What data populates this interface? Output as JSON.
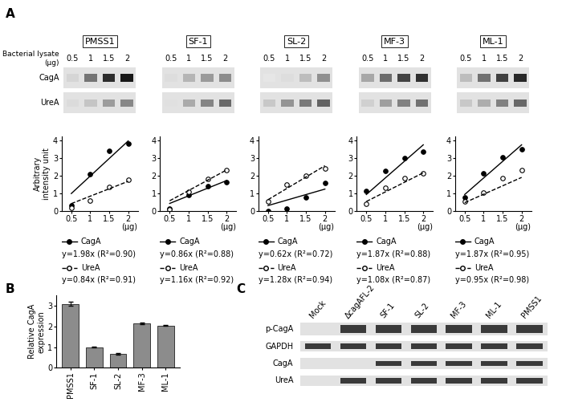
{
  "panel_labels": [
    "A",
    "B",
    "C"
  ],
  "panel_a": {
    "blot_header": "Bacterial lysate (μg)",
    "blot_rows": [
      "CagA",
      "UreA"
    ]
  },
  "chart_data": [
    {
      "type": "line",
      "title": "PMSS1",
      "x": [
        0.5,
        1,
        1.5,
        2
      ],
      "xlim": [
        0.25,
        2.25
      ],
      "xticks": [
        0.5,
        1,
        1.5,
        2
      ],
      "ylim": [
        0,
        4.2
      ],
      "yticks": [
        0,
        1,
        2,
        3,
        4
      ],
      "xlabel": "(μg)",
      "ylabel": "Arbitrary intensity unit",
      "series": [
        {
          "name": "CagA",
          "color": "#000000",
          "marker": "filled_circle",
          "line_style": "solid",
          "values": [
            0.3,
            2.1,
            3.4,
            3.8
          ],
          "fit_slope": 1.98,
          "fit_label": "y=1.98x (R²=0.90)"
        },
        {
          "name": "UreA",
          "color": "#000000",
          "marker": "open_circle",
          "line_style": "dashed",
          "values": [
            0.2,
            0.6,
            1.35,
            1.75
          ],
          "fit_slope": 0.84,
          "fit_label": "y=0.84x (R²=0.91)"
        }
      ]
    },
    {
      "type": "line",
      "title": "SF-1",
      "x": [
        0.5,
        1,
        1.5,
        2
      ],
      "xlim": [
        0.25,
        2.25
      ],
      "xticks": [
        0.5,
        1,
        1.5,
        2
      ],
      "ylim": [
        0,
        4.2
      ],
      "yticks": [
        0,
        1,
        2,
        3,
        4
      ],
      "xlabel": "(μg)",
      "series": [
        {
          "name": "CagA",
          "color": "#000000",
          "marker": "filled_circle",
          "line_style": "solid",
          "values": [
            0.15,
            0.9,
            1.4,
            1.65
          ],
          "fit_slope": 0.86,
          "fit_label": "y=0.86x (R²=0.88)"
        },
        {
          "name": "UreA",
          "color": "#000000",
          "marker": "open_circle",
          "line_style": "dashed",
          "values": [
            0.1,
            1.1,
            1.8,
            2.3
          ],
          "fit_slope": 1.16,
          "fit_label": "y=1.16x (R²=0.92)"
        }
      ]
    },
    {
      "type": "line",
      "title": "SL-2",
      "x": [
        0.5,
        1,
        1.5,
        2
      ],
      "xlim": [
        0.25,
        2.25
      ],
      "xticks": [
        0.5,
        1,
        1.5,
        2
      ],
      "ylim": [
        0,
        4.2
      ],
      "yticks": [
        0,
        1,
        2,
        3,
        4
      ],
      "xlabel": "(μg)",
      "series": [
        {
          "name": "CagA",
          "color": "#000000",
          "marker": "filled_circle",
          "line_style": "solid",
          "values": [
            0.0,
            0.15,
            0.75,
            1.6
          ],
          "fit_slope": 0.62,
          "fit_label": "y=0.62x (R²=0.72)"
        },
        {
          "name": "UreA",
          "color": "#000000",
          "marker": "open_circle",
          "line_style": "dashed",
          "values": [
            0.55,
            1.5,
            2.0,
            2.4
          ],
          "fit_slope": 1.28,
          "fit_label": "y=1.28x (R²=0.94)"
        }
      ]
    },
    {
      "type": "line",
      "title": "MF-3",
      "x": [
        0.5,
        1,
        1.5,
        2
      ],
      "xlim": [
        0.25,
        2.25
      ],
      "xticks": [
        0.5,
        1,
        1.5,
        2
      ],
      "ylim": [
        0,
        4.2
      ],
      "yticks": [
        0,
        1,
        2,
        3,
        4
      ],
      "xlabel": "(μg)",
      "series": [
        {
          "name": "CagA",
          "color": "#000000",
          "marker": "filled_circle",
          "line_style": "solid",
          "values": [
            1.15,
            2.25,
            3.0,
            3.35
          ],
          "fit_slope": 1.87,
          "fit_label": "y=1.87x (R²=0.88)"
        },
        {
          "name": "UreA",
          "color": "#000000",
          "marker": "open_circle",
          "line_style": "dashed",
          "values": [
            0.4,
            1.3,
            1.85,
            2.15
          ],
          "fit_slope": 1.08,
          "fit_label": "y=1.08x (R²=0.87)"
        }
      ]
    },
    {
      "type": "line",
      "title": "ML-1",
      "x": [
        0.5,
        1,
        1.5,
        2
      ],
      "xlim": [
        0.25,
        2.25
      ],
      "xticks": [
        0.5,
        1,
        1.5,
        2
      ],
      "ylim": [
        0,
        4.2
      ],
      "yticks": [
        0,
        1,
        2,
        3,
        4
      ],
      "xlabel": "(μg)",
      "series": [
        {
          "name": "CagA",
          "color": "#000000",
          "marker": "filled_circle",
          "line_style": "solid",
          "values": [
            0.75,
            2.15,
            3.05,
            3.5
          ],
          "fit_slope": 1.87,
          "fit_label": "y=1.87x (R²=0.95)"
        },
        {
          "name": "UreA",
          "color": "#000000",
          "marker": "open_circle",
          "line_style": "dashed",
          "values": [
            0.55,
            1.05,
            1.85,
            2.3
          ],
          "fit_slope": 0.95,
          "fit_label": "y=0.95x (R²=0.98)"
        }
      ]
    },
    {
      "type": "bar",
      "categories": [
        "PMSS1",
        "SF-1",
        "SL-2",
        "MF-3",
        "ML-1"
      ],
      "values": [
        3.1,
        1.0,
        0.68,
        2.15,
        2.05
      ],
      "error": [
        0.08,
        0.03,
        0.05,
        0.04,
        0.03
      ],
      "color": "#8c8c8c",
      "ylabel": "Relative CagA expression",
      "ylim": [
        0,
        3.5
      ],
      "yticks": [
        0,
        1,
        2,
        3
      ]
    }
  ],
  "panel_c": {
    "lanes": [
      "Mock",
      "ΔcagAFL-2",
      "SF-1",
      "SL-2",
      "MF-3",
      "ML-1",
      "PMSS1"
    ],
    "rows": [
      {
        "label": "p-CagA",
        "bands": [
          false,
          true,
          true,
          true,
          true,
          true,
          true
        ]
      },
      {
        "label": "GAPDH",
        "bands": [
          true,
          true,
          true,
          true,
          true,
          true,
          true
        ]
      },
      {
        "label": "CagA",
        "bands": [
          false,
          false,
          true,
          true,
          true,
          true,
          true
        ]
      },
      {
        "label": "UreA",
        "bands": [
          false,
          true,
          true,
          true,
          true,
          true,
          true
        ]
      }
    ]
  }
}
